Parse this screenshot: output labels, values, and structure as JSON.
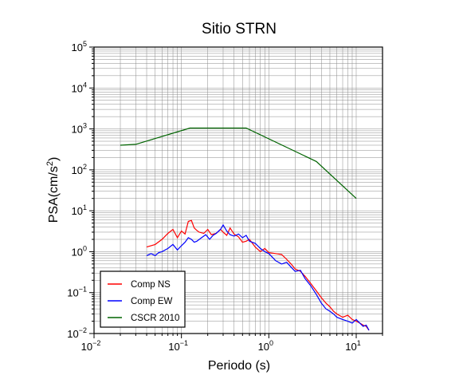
{
  "chart_data": {
    "type": "line",
    "title": "Sitio STRN",
    "xlabel": "Periodo (s)",
    "ylabel": "PSA(cm/s²)",
    "xscale": "log",
    "yscale": "log",
    "xlim": [
      0.01,
      20
    ],
    "ylim": [
      0.01,
      100000
    ],
    "grid": true,
    "legend_position": "bottom-left",
    "x_ticks": [
      {
        "base": "10",
        "exp": "−2",
        "value": 0.01
      },
      {
        "base": "10",
        "exp": "−1",
        "value": 0.1
      },
      {
        "base": "10",
        "exp": "0",
        "value": 1
      },
      {
        "base": "10",
        "exp": "1",
        "value": 10
      }
    ],
    "y_ticks": [
      {
        "base": "10",
        "exp": "−2",
        "value": 0.01
      },
      {
        "base": "10",
        "exp": "−1",
        "value": 0.1
      },
      {
        "base": "10",
        "exp": "0",
        "value": 1
      },
      {
        "base": "10",
        "exp": "1",
        "value": 10
      },
      {
        "base": "10",
        "exp": "2",
        "value": 100
      },
      {
        "base": "10",
        "exp": "3",
        "value": 1000
      },
      {
        "base": "10",
        "exp": "4",
        "value": 10000
      },
      {
        "base": "10",
        "exp": "5",
        "value": 100000
      }
    ],
    "series": [
      {
        "name": "Comp NS",
        "color": "#ff0000",
        "x": [
          0.04,
          0.05,
          0.06,
          0.07,
          0.08,
          0.09,
          0.1,
          0.11,
          0.12,
          0.13,
          0.14,
          0.15,
          0.16,
          0.18,
          0.2,
          0.22,
          0.25,
          0.28,
          0.3,
          0.33,
          0.36,
          0.4,
          0.45,
          0.5,
          0.55,
          0.6,
          0.7,
          0.8,
          0.9,
          1.0,
          1.2,
          1.4,
          1.6,
          1.8,
          2.0,
          2.3,
          2.6,
          3.0,
          3.5,
          4.0,
          4.5,
          5.0,
          5.5,
          6.0,
          7.0,
          8.0,
          9.0,
          10.0,
          11.0,
          12.0,
          13.0,
          14.0
        ],
        "y": [
          1.3,
          1.5,
          2.0,
          2.8,
          3.5,
          2.2,
          3.2,
          2.7,
          5.5,
          5.8,
          3.8,
          3.3,
          3.0,
          2.8,
          3.5,
          2.6,
          2.8,
          3.5,
          3.0,
          2.5,
          3.8,
          2.7,
          2.3,
          1.7,
          1.8,
          2.0,
          1.3,
          1.0,
          1.2,
          0.95,
          0.9,
          0.85,
          0.65,
          0.5,
          0.38,
          0.33,
          0.25,
          0.17,
          0.11,
          0.075,
          0.055,
          0.045,
          0.035,
          0.03,
          0.025,
          0.028,
          0.022,
          0.02,
          0.018,
          0.016,
          0.015,
          0.012
        ]
      },
      {
        "name": "Comp EW",
        "color": "#0000ff",
        "x": [
          0.04,
          0.045,
          0.05,
          0.055,
          0.06,
          0.07,
          0.08,
          0.09,
          0.1,
          0.11,
          0.12,
          0.13,
          0.14,
          0.15,
          0.17,
          0.19,
          0.21,
          0.23,
          0.25,
          0.28,
          0.3,
          0.33,
          0.36,
          0.4,
          0.45,
          0.5,
          0.55,
          0.6,
          0.7,
          0.8,
          0.9,
          1.0,
          1.2,
          1.4,
          1.6,
          1.8,
          2.0,
          2.3,
          2.6,
          3.0,
          3.5,
          4.0,
          4.5,
          5.0,
          5.5,
          6.0,
          7.0,
          8.0,
          9.0,
          10.0,
          11.0,
          12.0,
          13.0,
          14.0
        ],
        "y": [
          0.8,
          0.9,
          0.8,
          0.95,
          1.0,
          1.2,
          1.5,
          1.1,
          1.4,
          1.7,
          2.2,
          2.0,
          1.7,
          1.8,
          2.2,
          2.6,
          2.0,
          2.5,
          2.8,
          3.5,
          4.5,
          3.2,
          2.6,
          2.4,
          2.7,
          2.2,
          2.5,
          1.8,
          1.6,
          1.2,
          1.0,
          0.9,
          0.6,
          0.5,
          0.55,
          0.42,
          0.33,
          0.35,
          0.22,
          0.15,
          0.09,
          0.055,
          0.04,
          0.035,
          0.03,
          0.025,
          0.022,
          0.02,
          0.018,
          0.022,
          0.018,
          0.015,
          0.016,
          0.012
        ]
      },
      {
        "name": "CSCR 2010",
        "color": "#006400",
        "x": [
          0.02,
          0.03,
          0.125,
          0.55,
          3.5,
          10
        ],
        "y": [
          400,
          420,
          1050,
          1050,
          160,
          20
        ]
      }
    ]
  }
}
